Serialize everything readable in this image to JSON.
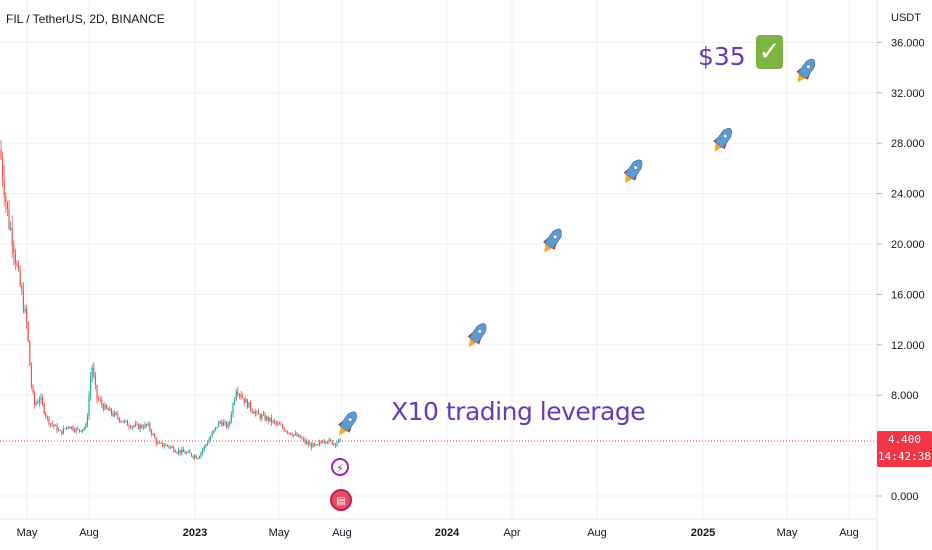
{
  "header": {
    "title": "FIL / TetherUS, 2D, BINANCE",
    "unit": "USDT"
  },
  "price_tag": {
    "price": "4.400",
    "countdown": "14:42:38",
    "color": "#f23645"
  },
  "annotations": {
    "leverage_text": "X10 trading leverage",
    "target_text": "$35",
    "check_glyph": "✓",
    "event_bolt_icon": "lightning-bolt-icon",
    "event_flag_icon": "us-flag-icon",
    "rocket_icon": "rocket-icon"
  },
  "colors": {
    "up": "#26a69a",
    "down": "#ef5350",
    "annotation_text": "#673ab7",
    "grid": "#eef0f3"
  },
  "chart_data": {
    "type": "candlestick",
    "title": "FIL / TetherUS, 2D, BINANCE",
    "ylabel": "USDT",
    "ylim": [
      -1.2,
      37.6
    ],
    "y_ticks": [
      "0.000",
      "4.000",
      "8.000",
      "12.000",
      "16.000",
      "20.000",
      "24.000",
      "28.000",
      "32.000",
      "36.000"
    ],
    "x_ticks": [
      "May",
      "Aug",
      "2023",
      "May",
      "Aug",
      "2024",
      "Apr",
      "Aug",
      "2025",
      "May",
      "Aug"
    ],
    "last_price": 4.4,
    "price_series": {
      "name": "",
      "dates": [
        "2022-04-01",
        "2022-04-05",
        "2022-04-10",
        "2022-04-15",
        "2022-04-20",
        "2022-04-25",
        "2022-05-01",
        "2022-05-07",
        "2022-05-12",
        "2022-05-20",
        "2022-06-01",
        "2022-06-13",
        "2022-06-20",
        "2022-07-01",
        "2022-07-15",
        "2022-07-28",
        "2022-08-05",
        "2022-08-12",
        "2022-08-25",
        "2022-09-10",
        "2022-09-25",
        "2022-10-10",
        "2022-10-25",
        "2022-11-08",
        "2022-11-22",
        "2022-12-06",
        "2022-12-20",
        "2023-01-05",
        "2023-01-20",
        "2023-02-05",
        "2023-02-18",
        "2023-03-01",
        "2023-03-15",
        "2023-04-01",
        "2023-04-15",
        "2023-05-01",
        "2023-05-15",
        "2023-06-01",
        "2023-06-12",
        "2023-06-25",
        "2023-07-05",
        "2023-07-20",
        "2023-07-30"
      ],
      "close": [
        27.5,
        25.0,
        22.0,
        20.5,
        18.0,
        16.0,
        13.5,
        9.0,
        7.2,
        7.8,
        6.0,
        5.4,
        5.0,
        5.6,
        5.2,
        5.5,
        10.5,
        7.8,
        6.9,
        6.3,
        5.7,
        5.5,
        5.6,
        4.1,
        4.0,
        3.6,
        3.4,
        3.1,
        4.4,
        5.9,
        5.5,
        8.6,
        7.4,
        6.4,
        6.1,
        5.6,
        5.1,
        4.6,
        4.1,
        3.9,
        4.5,
        4.2,
        4.4
      ]
    },
    "projection": {
      "dates": [
        "2023-08-12",
        "2024-02-15",
        "2024-06-01",
        "2024-09-25",
        "2025-02-01",
        "2025-06-01"
      ],
      "values": [
        6.0,
        13.0,
        20.5,
        26.0,
        28.5,
        34.0
      ]
    }
  }
}
